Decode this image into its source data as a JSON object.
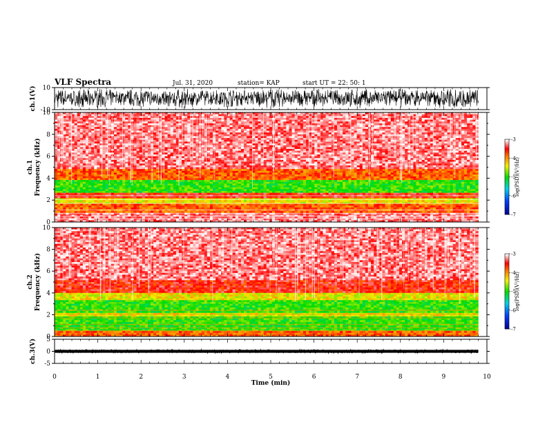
{
  "header": {
    "title": "VLF Spectra",
    "date": "Jul. 31, 2020",
    "station": "station= KAP",
    "start": "start  UT =   22: 50: 1"
  },
  "colors": {
    "spectrum_low": "#00008b",
    "spectrum_mid": "#00e000",
    "spectrum_high": "#ff0000",
    "spectrum_top": "#ffffff",
    "trace": "#000000"
  },
  "chart_data": [
    {
      "type": "line",
      "panel": "ch1-waveform",
      "ylabel": "ch.1(V)",
      "ylim": [
        -10,
        10
      ],
      "yticks": [
        "10",
        "-10"
      ],
      "xlim": [
        0,
        10
      ],
      "x_extent_min": 9.8,
      "envelope": {
        "x": [
          0,
          0.5,
          1,
          1.5,
          2,
          2.5,
          3,
          3.5,
          4,
          4.5,
          5,
          5.5,
          6,
          6.5,
          7,
          7.5,
          8,
          8.5,
          9,
          9.5,
          9.8
        ],
        "upper": [
          9,
          8,
          9,
          8,
          9,
          8,
          9,
          8,
          9,
          8,
          9,
          8,
          9,
          8,
          9,
          8,
          9,
          8,
          9,
          8,
          9
        ],
        "lower": [
          -9,
          -8,
          -9,
          -6,
          -8,
          -7,
          -9,
          -6,
          -8,
          -6,
          -9,
          -7,
          -8,
          -6,
          -9,
          -7,
          -8,
          -6,
          -9,
          -8,
          -9
        ]
      }
    },
    {
      "type": "heatmap",
      "panel": "ch1-spectrogram",
      "ylabel": "ch.1\nFrequency (kHz)",
      "ylim": [
        0,
        10
      ],
      "yticks": [
        "0",
        "2",
        "4",
        "6",
        "8",
        "10"
      ],
      "xlim": [
        0,
        10
      ],
      "x_extent_min": 9.8,
      "bands_khz": [
        {
          "range": [
            0,
            0.9
          ],
          "level": "mixed red/white stripes"
        },
        {
          "range": [
            0.9,
            1.6
          ],
          "level": "red-orange"
        },
        {
          "range": [
            1.6,
            2.2
          ],
          "level": "yellow/orange"
        },
        {
          "range": [
            2.2,
            2.6
          ],
          "level": "red"
        },
        {
          "range": [
            2.6,
            3.8
          ],
          "level": "yellow-green"
        },
        {
          "range": [
            3.8,
            4.8
          ],
          "level": "red-orange"
        },
        {
          "range": [
            4.8,
            10
          ],
          "level": "light red / white"
        }
      ],
      "colorbar": {
        "label": "log(PSD)(V²/Hz)",
        "range": [
          -7,
          -3
        ],
        "ticks": [
          "-3",
          "-4",
          "-5",
          "-6",
          "-7"
        ]
      }
    },
    {
      "type": "heatmap",
      "panel": "ch2-spectrogram",
      "ylabel": "ch.2\nFrequency (kHz)",
      "ylim": [
        0,
        10
      ],
      "yticks": [
        "0",
        "2",
        "4",
        "6",
        "8",
        "10"
      ],
      "xlim": [
        0,
        10
      ],
      "x_extent_min": 9.8,
      "bands_khz": [
        {
          "range": [
            0,
            0.5
          ],
          "level": "orange stripes"
        },
        {
          "range": [
            0.5,
            1.8
          ],
          "level": "green with yellow"
        },
        {
          "range": [
            1.8,
            2.2
          ],
          "level": "yellow-orange"
        },
        {
          "range": [
            2.2,
            3.3
          ],
          "level": "green"
        },
        {
          "range": [
            3.3,
            4.0
          ],
          "level": "yellow-orange"
        },
        {
          "range": [
            4.0,
            5.2
          ],
          "level": "red"
        },
        {
          "range": [
            5.2,
            10
          ],
          "level": "light red / white"
        }
      ],
      "colorbar": {
        "label": "log(PSD)(V²/Hz)",
        "range": [
          -7,
          -3
        ],
        "ticks": [
          "-3",
          "-4",
          "-5",
          "-6",
          "-7"
        ]
      }
    },
    {
      "type": "line",
      "panel": "ch3-waveform",
      "ylabel": "ch.3(V)",
      "ylim": [
        -5,
        5
      ],
      "yticks": [
        "5",
        "0",
        "-5"
      ],
      "xlim": [
        0,
        10
      ],
      "x_extent_min": 9.8,
      "envelope": {
        "x": [
          0,
          9.8
        ],
        "upper": [
          0.6,
          0.6
        ],
        "lower": [
          -0.6,
          -0.6
        ]
      },
      "xlabel": "Time (min)",
      "xticks": [
        "0",
        "1",
        "2",
        "3",
        "4",
        "5",
        "6",
        "7",
        "8",
        "9",
        "10"
      ]
    }
  ]
}
